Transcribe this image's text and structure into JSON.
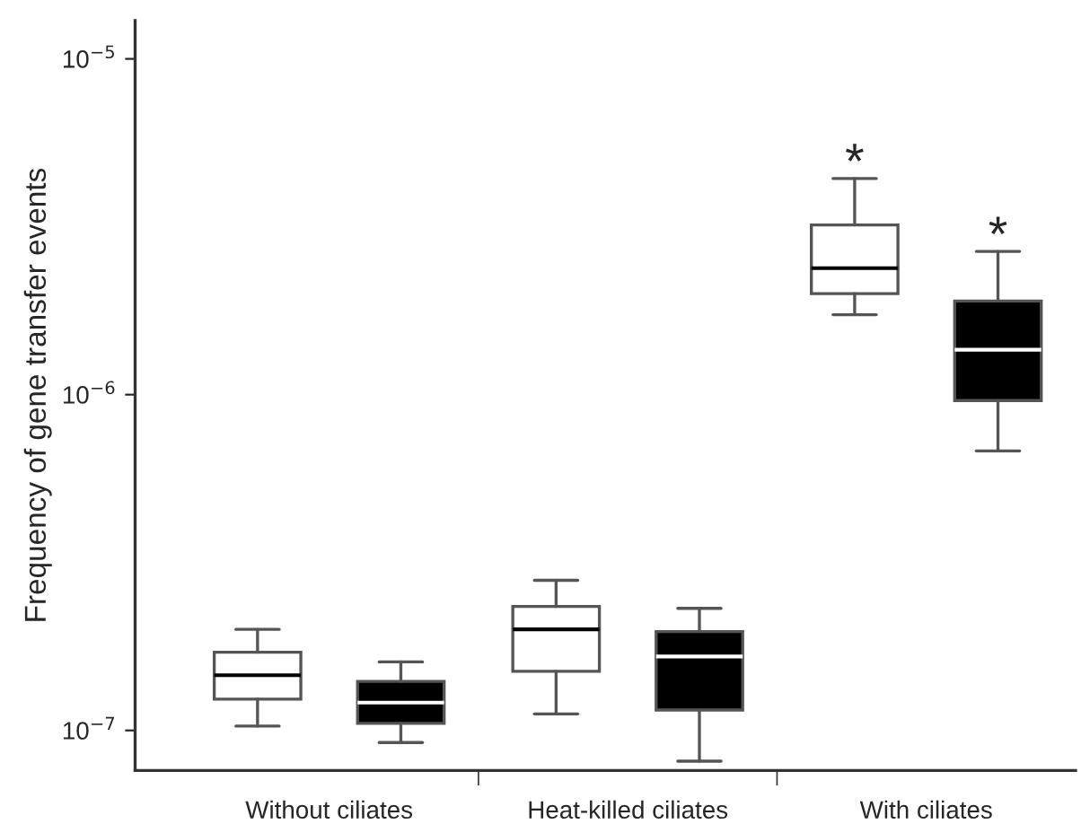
{
  "chart_data": {
    "type": "box",
    "ylabel": "Frequency of gene transfer events",
    "log": "y",
    "categories": [
      "Without ciliates",
      "Heat-killed ciliates",
      "With ciliates"
    ],
    "ylim": [
      7.6e-08,
      1.3e-05
    ],
    "yticks": [
      {
        "value": 1e-07,
        "label": "10$^{−7}$"
      },
      {
        "value": 1e-06,
        "label": "10$^{−6}$"
      },
      {
        "value": 1e-05,
        "label": "10$^{−5}$"
      }
    ],
    "series": [
      {
        "color": "#ffffff",
        "boxes": [
          {
            "low": 1.03e-07,
            "q1": 1.24e-07,
            "median": 1.46e-07,
            "q3": 1.71e-07,
            "high": 2e-07
          },
          {
            "low": 1.12e-07,
            "q1": 1.5e-07,
            "median": 2e-07,
            "q3": 2.34e-07,
            "high": 2.8e-07
          },
          {
            "low": 1.73e-06,
            "q1": 2e-06,
            "median": 2.38e-06,
            "q3": 3.2e-06,
            "high": 4.4e-06
          }
        ]
      },
      {
        "color": "#000000",
        "boxes": [
          {
            "low": 9.2e-08,
            "q1": 1.05e-07,
            "median": 1.21e-07,
            "q3": 1.4e-07,
            "high": 1.6e-07
          },
          {
            "low": 8.1e-08,
            "q1": 1.15e-07,
            "median": 1.66e-07,
            "q3": 1.97e-07,
            "high": 2.31e-07
          },
          {
            "low": 6.8e-07,
            "q1": 9.6e-07,
            "median": 1.36e-06,
            "q3": 1.9e-06,
            "high": 2.67e-06
          }
        ]
      }
    ],
    "annotations": [
      "*",
      "*"
    ],
    "grid": false,
    "legend": false
  }
}
